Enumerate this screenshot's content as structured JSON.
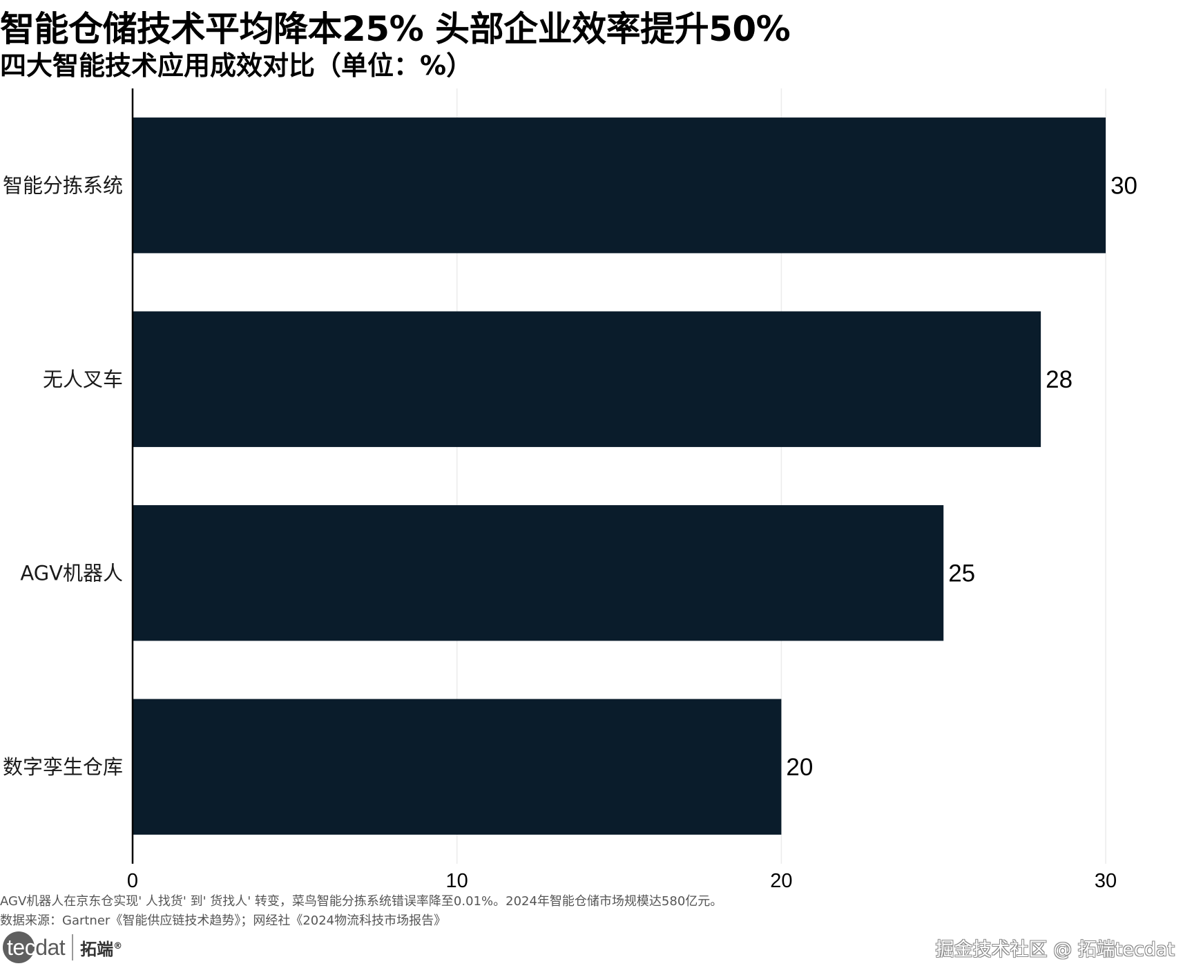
{
  "title": "智能仓储技术平均降本25%  头部企业效率提升50%",
  "subtitle": "四大智能技术应用成效对比（单位：%）",
  "chart_data": {
    "type": "bar",
    "orientation": "horizontal",
    "categories": [
      "智能分拣系统",
      "无人叉车",
      "AGV机器人",
      "数字孪生仓库"
    ],
    "values": [
      30,
      28,
      25,
      20
    ],
    "data_labels": [
      "30",
      "28",
      "25",
      "20"
    ],
    "xlim": [
      0,
      32
    ],
    "xticks": [
      0,
      10,
      20,
      30
    ],
    "xlabel": "",
    "ylabel": "",
    "grid": "vertical",
    "bar_color": "#0a1c2b"
  },
  "caption": "AGV机器人在京东仓实现' 人找货' 到' 货找人' 转变，菜鸟智能分拣系统错误率降至0.01%。2024年智能仓储市场规模达580亿元。",
  "source": "数据来源：Gartner《智能供应链技术趋势》；网经社《2024物流科技市场报告》",
  "logo": {
    "tec": "tec",
    "dat": "dat",
    "cn": "拓端",
    "reg": "®"
  },
  "watermark": "掘金技术社区 @ 拓端tecdat"
}
